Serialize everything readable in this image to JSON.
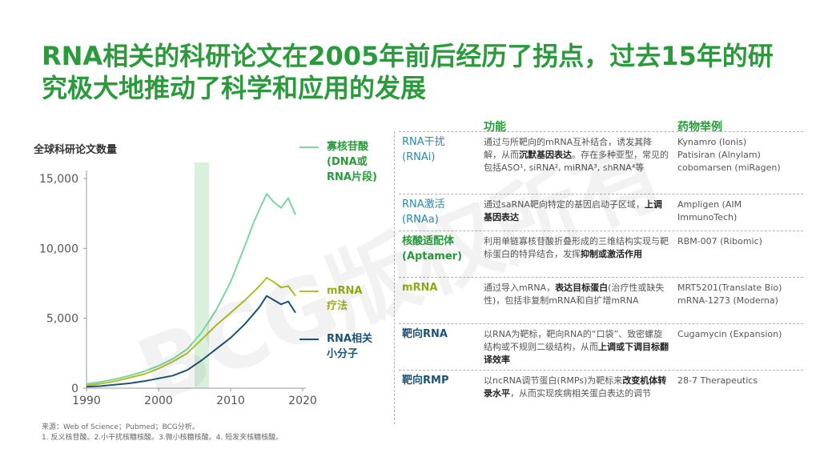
{
  "title": "RNA相关的科研论文在2005年前后经历了拐点，过去15年的研究极大地推动了科学和应用的发展",
  "chart_data": {
    "type": "line",
    "title": "全球科研论文数量",
    "xlabel": "",
    "ylabel": "",
    "xlim": [
      1990,
      2020
    ],
    "ylim": [
      0,
      15000
    ],
    "x_ticks": [
      1990,
      2000,
      2010,
      2020
    ],
    "y_ticks": [
      0,
      5000,
      10000,
      15000
    ],
    "y_tick_labels": [
      "0",
      "5,000",
      "10,000",
      "15,000"
    ],
    "highlight_band": [
      2005,
      2007
    ],
    "legend_position": "right",
    "series": [
      {
        "name": "寡核苷酸 (DNA或RNA片段)",
        "color": "#7dd6a2",
        "points": [
          [
            1990,
            300
          ],
          [
            1992,
            450
          ],
          [
            1994,
            650
          ],
          [
            1996,
            900
          ],
          [
            1998,
            1200
          ],
          [
            2000,
            1600
          ],
          [
            2002,
            2100
          ],
          [
            2004,
            2800
          ],
          [
            2006,
            4000
          ],
          [
            2008,
            5600
          ],
          [
            2010,
            7600
          ],
          [
            2012,
            10200
          ],
          [
            2013,
            11600
          ],
          [
            2014,
            12800
          ],
          [
            2015,
            13900
          ],
          [
            2016,
            13300
          ],
          [
            2017,
            12900
          ],
          [
            2018,
            13600
          ],
          [
            2019,
            12400
          ]
        ]
      },
      {
        "name": "mRNA 疗法",
        "color": "#b2bf28",
        "points": [
          [
            1990,
            200
          ],
          [
            1992,
            320
          ],
          [
            1994,
            500
          ],
          [
            1996,
            750
          ],
          [
            1998,
            1000
          ],
          [
            2000,
            1400
          ],
          [
            2002,
            1900
          ],
          [
            2004,
            2500
          ],
          [
            2006,
            3500
          ],
          [
            2008,
            4500
          ],
          [
            2010,
            5400
          ],
          [
            2012,
            6300
          ],
          [
            2014,
            7300
          ],
          [
            2015,
            7900
          ],
          [
            2016,
            7600
          ],
          [
            2017,
            7200
          ],
          [
            2018,
            7300
          ],
          [
            2019,
            6600
          ]
        ]
      },
      {
        "name": "RNA相关 小分子",
        "color": "#1e5378",
        "points": [
          [
            1990,
            100
          ],
          [
            1992,
            150
          ],
          [
            1994,
            250
          ],
          [
            1996,
            350
          ],
          [
            1998,
            500
          ],
          [
            2000,
            700
          ],
          [
            2002,
            900
          ],
          [
            2004,
            1300
          ],
          [
            2006,
            2000
          ],
          [
            2008,
            2800
          ],
          [
            2010,
            3600
          ],
          [
            2012,
            4600
          ],
          [
            2014,
            5800
          ],
          [
            2015,
            6600
          ],
          [
            2016,
            6300
          ],
          [
            2017,
            6000
          ],
          [
            2018,
            6200
          ],
          [
            2019,
            5400
          ]
        ]
      }
    ]
  },
  "legend": [
    {
      "label": "寡核苷酸 (DNA或 RNA片段)",
      "color": "#7dd6a2"
    },
    {
      "label": "mRNA 疗法",
      "color": "#b2bf28"
    },
    {
      "label": "RNA相关 小分子",
      "color": "#1e5378"
    }
  ],
  "table": {
    "headers": {
      "function": "功能",
      "drugs": "药物举例"
    },
    "rows": [
      {
        "name": "RNA干扰 (RNAi)",
        "name_style": "teal",
        "func_pre": "通过与所靶向的mRNA互补结合，诱发其降解，从而",
        "func_bold": "沉默基因表达",
        "func_post": "。存在多种亚型，常见的包括ASO¹, siRNA², miRNA³, shRNA⁴等",
        "drugs": "Kynamro (Ionis)\nPatisiran (Alnylam)\ncobomarsen (miRagen)"
      },
      {
        "name": "RNA激活 (RNAa)",
        "name_style": "teal",
        "func_pre": "通过saRNA靶向特定的基因启动子区域，",
        "func_bold": "上调基因表达",
        "func_post": "",
        "drugs": "Ampligen (AIM\nImmunoTech)"
      },
      {
        "name": "核酸适配体 (Aptamer)",
        "name_style": "green",
        "func_pre": "利用单链寡核苷酸折叠形成的三维结构实现与靶标蛋白的特异结合，发挥",
        "func_bold": "抑制或激活作用",
        "func_post": "",
        "drugs": "RBM-007 (Ribomic)"
      },
      {
        "name": "mRNA",
        "name_style": "olive",
        "func_pre": "通过导入mRNA，",
        "func_bold": "表达目标蛋白",
        "func_post": "(治疗性或缺失性)，包括非复制mRNA和自扩增mRNA",
        "drugs": "MRT5201(Translate Bio)\nmRNA-1273 (Moderna)"
      },
      {
        "name": "靶向RNA",
        "name_style": "navy",
        "func_pre": "以RNA为靶标，靶向RNA的“口袋”、致密螺旋结构或不规则二级结构，从而",
        "func_bold": "上调或下调目标翻译效率",
        "func_post": "",
        "drugs": "Cugamycin (Expansion)"
      },
      {
        "name": "靶向RMP",
        "name_style": "navy",
        "func_pre": "以ncRNA调节蛋白(RMPs)为靶标来",
        "func_bold": "改变机体转录水平",
        "func_post": "，从而实现疾病相关蛋白表达的调节",
        "drugs": "28-7 Therapeutics"
      }
    ]
  },
  "source": "来源：Web of Science；Pubmed；BCG分析。",
  "footnote": "1. 反义核苷酸。2.小干扰核糖核酸。3.微小核糖核酸。4. 短发夹核糖核酸。",
  "watermark": "BCG版权所有"
}
